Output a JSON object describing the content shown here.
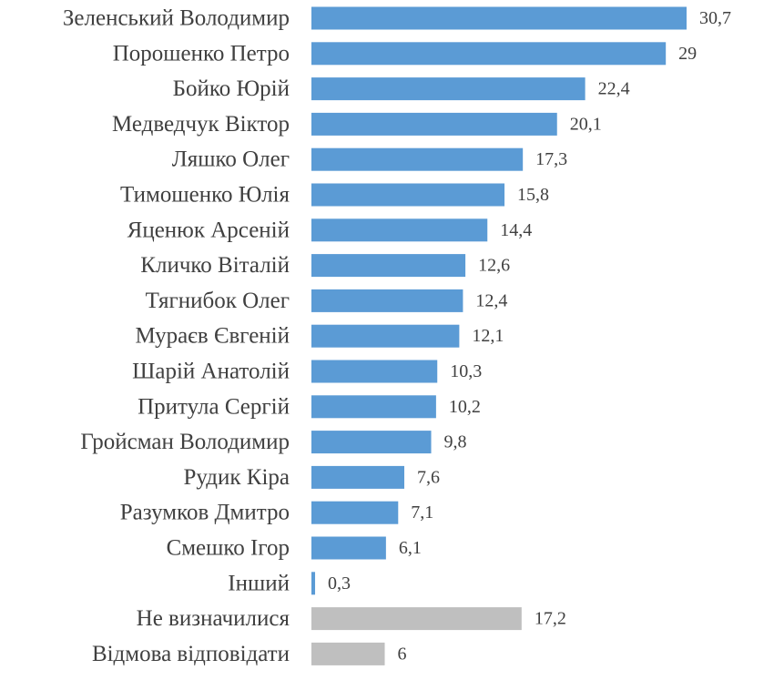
{
  "chart_data": {
    "type": "bar",
    "orientation": "horizontal",
    "categories": [
      "Зеленський Володимир",
      "Порошенко Петро",
      "Бойко Юрій",
      "Медведчук Віктор",
      "Ляшко Олег",
      "Тимошенко Юлія",
      "Яценюк Арсеній",
      "Кличко Віталій",
      "Тягнибок Олег",
      "Мураєв Євгеній",
      "Шарій Анатолій",
      "Притула Сергій",
      "Гройсман Володимир",
      "Рудик Кіра",
      "Разумков Дмитро",
      "Смешко Ігор",
      "Інший",
      "Не визначилися",
      "Відмова відповідати"
    ],
    "values": [
      30.7,
      29,
      22.4,
      20.1,
      17.3,
      15.8,
      14.4,
      12.6,
      12.4,
      12.1,
      10.3,
      10.2,
      9.8,
      7.6,
      7.1,
      6.1,
      0.3,
      17.2,
      6
    ],
    "value_labels": [
      "30,7",
      "29",
      "22,4",
      "20,1",
      "17,3",
      "15,8",
      "14,4",
      "12,6",
      "12,4",
      "12,1",
      "10,3",
      "10,2",
      "9,8",
      "7,6",
      "7,1",
      "6,1",
      "0,3",
      "17,2",
      "6"
    ],
    "bar_colors": [
      "#5B9BD5",
      "#5B9BD5",
      "#5B9BD5",
      "#5B9BD5",
      "#5B9BD5",
      "#5B9BD5",
      "#5B9BD5",
      "#5B9BD5",
      "#5B9BD5",
      "#5B9BD5",
      "#5B9BD5",
      "#5B9BD5",
      "#5B9BD5",
      "#5B9BD5",
      "#5B9BD5",
      "#5B9BD5",
      "#5B9BD5",
      "#BFBFBF",
      "#BFBFBF"
    ],
    "xlim": [
      0,
      30.7
    ],
    "grid": false,
    "legend": "none",
    "title": "",
    "xlabel": "",
    "ylabel": ""
  }
}
